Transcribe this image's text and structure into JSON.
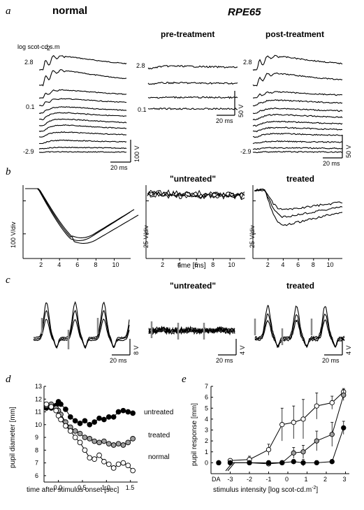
{
  "panel_a": {
    "letter": "a",
    "title_normal": "normal",
    "title_rpe65": "RPE65",
    "title_pre": "pre-treatment",
    "title_post": "post-treatment",
    "ylabel": "log scot-cd.s.m",
    "ylabel_sup": "-2",
    "int_top": "2.8",
    "int_mid": "0.1",
    "int_bot": "-2.9",
    "scale_time": "20 ms",
    "scale_v_normal": "100  V",
    "scale_v_rpe": "50  V"
  },
  "panel_b": {
    "letter": "b",
    "title_untreated": "\"untreated\"",
    "title_treated": "treated",
    "ylabel_normal": "100  V/div",
    "ylabel_untreated": "25  V/div",
    "ylabel_treated": "25  V/div",
    "xticks": [
      "2",
      "4",
      "6",
      "8",
      "10"
    ],
    "xlabel": "time [ms]"
  },
  "panel_c": {
    "letter": "c",
    "title_untreated": "\"untreated\"",
    "title_treated": "treated",
    "scale_time": "20 ms",
    "scale_v_normal": "8  V",
    "scale_v_untreated": "4  V",
    "scale_v_treated": "4  V"
  },
  "panel_d": {
    "letter": "d",
    "ylabel": "pupil diameter [mm]",
    "xlabel": "time after stimulus onset [sec]",
    "yticks": [
      "6",
      "7",
      "8",
      "9",
      "10",
      "11",
      "12",
      "13"
    ],
    "xticks": [
      "0.0",
      "0.5",
      "1.0",
      "1.5"
    ],
    "label_untreated": "untreated",
    "label_treated": "treated",
    "label_normal": "normal"
  },
  "panel_e": {
    "letter": "e",
    "ylabel": "pupil response [mm]",
    "xlabel": "stimulus intensity [log scot-cd.m",
    "xlabel_sup": "-2",
    "xlabel_end": "]",
    "yticks": [
      "0",
      "1",
      "2",
      "3",
      "4",
      "5",
      "6",
      "7"
    ],
    "xticks": [
      "-3",
      "-2",
      "-1",
      "0",
      "1",
      "2",
      "3"
    ],
    "da_label": "DA"
  },
  "colors": {
    "black": "#000000",
    "gray_fill": "#9e9e9e",
    "gray_bar": "#8a8a8a",
    "white": "#ffffff"
  },
  "chart_data": [
    {
      "type": "scatter",
      "panel": "d",
      "xlabel": "time after stimulus onset [sec]",
      "ylabel": "pupil diameter [mm]",
      "xlim": [
        -0.3,
        1.65
      ],
      "ylim": [
        5.5,
        13
      ],
      "series": [
        {
          "name": "untreated",
          "marker": "filled-black",
          "x": [
            -0.25,
            -0.15,
            -0.05,
            0.0,
            0.05,
            0.15,
            0.25,
            0.35,
            0.45,
            0.55,
            0.65,
            0.75,
            0.85,
            0.95,
            1.05,
            1.15,
            1.25,
            1.35,
            1.45,
            1.55
          ],
          "y": [
            11.3,
            11.3,
            11.5,
            11.8,
            11.6,
            11.2,
            10.6,
            10.3,
            10.1,
            10.3,
            10.0,
            10.2,
            10.5,
            10.4,
            10.6,
            10.6,
            11.0,
            11.1,
            11.0,
            10.9
          ]
        },
        {
          "name": "treated",
          "marker": "filled-gray",
          "x": [
            -0.25,
            -0.15,
            -0.05,
            0.0,
            0.05,
            0.15,
            0.25,
            0.35,
            0.45,
            0.55,
            0.65,
            0.75,
            0.85,
            0.95,
            1.05,
            1.15,
            1.25,
            1.35,
            1.45,
            1.55
          ],
          "y": [
            11.5,
            11.6,
            11.3,
            11.1,
            10.8,
            10.2,
            9.8,
            9.5,
            9.3,
            9.0,
            8.9,
            8.7,
            8.6,
            8.7,
            8.5,
            8.4,
            8.5,
            8.4,
            8.6,
            8.9
          ]
        },
        {
          "name": "normal",
          "marker": "open",
          "x": [
            -0.25,
            -0.15,
            -0.05,
            0.0,
            0.05,
            0.15,
            0.25,
            0.35,
            0.45,
            0.55,
            0.65,
            0.75,
            0.85,
            0.95,
            1.05,
            1.15,
            1.25,
            1.35,
            1.45,
            1.55
          ],
          "y": [
            11.6,
            11.4,
            11.1,
            10.7,
            10.4,
            9.9,
            9.5,
            9.0,
            8.6,
            8.0,
            7.4,
            7.3,
            7.6,
            7.1,
            6.9,
            6.6,
            6.9,
            7.0,
            6.8,
            6.4
          ]
        }
      ]
    },
    {
      "type": "line",
      "panel": "e",
      "xlabel": "stimulus intensity [log scot-cd.m-2]",
      "ylabel": "pupil response [mm]",
      "xlim": [
        -4,
        3.2
      ],
      "ylim": [
        -1,
        7
      ],
      "series": [
        {
          "name": "",
          "marker": "open",
          "x": [
            "DA",
            -3,
            -2,
            -1,
            -0.3,
            0.3,
            0.8,
            1.5,
            2.3,
            2.9
          ],
          "y": [
            0,
            0.2,
            0.3,
            1.2,
            3.5,
            3.7,
            4.0,
            5.2,
            5.5,
            6.5
          ],
          "err": [
            0,
            0.1,
            0.3,
            0.5,
            1.5,
            1.5,
            1.8,
            1.2,
            0.6,
            0.3
          ]
        },
        {
          "name": "",
          "marker": "filled-gray",
          "x": [
            "DA",
            -3,
            -2,
            -1,
            -0.3,
            0.3,
            0.8,
            1.5,
            2.3,
            2.9
          ],
          "y": [
            0,
            0,
            0,
            -0.1,
            0,
            0.9,
            1.0,
            2.0,
            2.6,
            6.2
          ],
          "err": [
            0,
            0,
            0,
            0.1,
            0.1,
            0.5,
            0.6,
            0.9,
            1.1,
            0.5
          ]
        },
        {
          "name": "",
          "marker": "filled-black",
          "x": [
            "DA",
            -3,
            -2,
            -1,
            -0.3,
            0.3,
            0.8,
            1.5,
            2.3,
            2.9
          ],
          "y": [
            0,
            0,
            0,
            0,
            0,
            0.1,
            0,
            0,
            0.1,
            3.2
          ],
          "err": [
            0,
            0,
            0,
            0.2,
            0.2,
            0.2,
            0.3,
            0.2,
            0.2,
            0.6
          ]
        }
      ]
    }
  ]
}
